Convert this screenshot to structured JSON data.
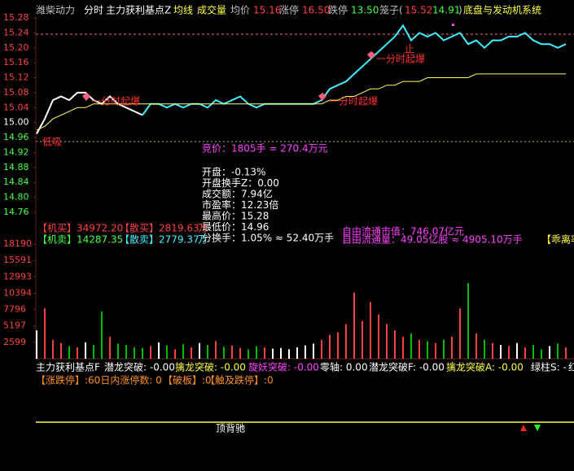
{
  "header": {
    "stock": "潍柴动力",
    "mode": "分时",
    "indicator": "主力获利基点Z",
    "ma": "均线",
    "volume": "成交量",
    "avg_label": "均价",
    "avg_value": "15.16",
    "limit_up_label": "涨停",
    "limit_up": "16.50",
    "limit_down_label": "跌停",
    "limit_down": "13.50",
    "cage_open": "笼子(",
    "cage_high": "15.52",
    "cage_low": "14.91",
    "cage_close": ")",
    "sector": "底盘与发动机系统"
  },
  "chart_data": {
    "type": "line",
    "ylim": [
      14.76,
      15.28
    ],
    "yticks": [
      15.28,
      15.24,
      {
        "value": 15.2,
        "label": "15.20"
      },
      15.16,
      15.12,
      15.08,
      15.04,
      {
        "value": 15.0,
        "label": "15.00"
      },
      14.96,
      14.92,
      14.88,
      14.84,
      {
        "value": 14.8,
        "label": "14.80"
      },
      14.76
    ],
    "series": [
      {
        "color": "#ffffff",
        "values": [
          14.97,
          15.01,
          15.06,
          15.07,
          15.06,
          15.08,
          15.08,
          15.06,
          15.05,
          15.07,
          15.05,
          15.04,
          15.03,
          15.02,
          null,
          null,
          null,
          null,
          null,
          null,
          null,
          null,
          null,
          null,
          null,
          null,
          null,
          null,
          null,
          null,
          null,
          null,
          null,
          null,
          null,
          null,
          null,
          null,
          null,
          null,
          null,
          null,
          null,
          null,
          null,
          null,
          null,
          null,
          null,
          null,
          null,
          null,
          null,
          null,
          null,
          null,
          null,
          null,
          null,
          null,
          null,
          null,
          null,
          null,
          null,
          null
        ]
      },
      {
        "color": "#40f0ff",
        "values": [
          null,
          null,
          null,
          null,
          null,
          null,
          null,
          null,
          null,
          null,
          null,
          null,
          null,
          15.02,
          15.05,
          15.05,
          15.04,
          15.05,
          15.04,
          15.05,
          15.05,
          15.04,
          15.06,
          15.05,
          15.06,
          15.07,
          15.05,
          15.04,
          15.05,
          15.05,
          15.05,
          15.05,
          15.05,
          15.05,
          15.05,
          15.06,
          15.09,
          15.1,
          15.11,
          15.13,
          15.15,
          15.17,
          15.19,
          15.21,
          15.23,
          15.26,
          15.22,
          15.24,
          15.23,
          15.24,
          15.22,
          15.23,
          15.24,
          15.21,
          15.22,
          15.2,
          15.22,
          15.22,
          15.23,
          15.23,
          15.24,
          15.22,
          15.21,
          15.21,
          15.2,
          15.21
        ]
      },
      {
        "color": "#ffff60",
        "values": [
          14.98,
          14.99,
          15.01,
          15.02,
          15.03,
          15.04,
          15.04,
          15.05,
          15.05,
          15.05,
          15.05,
          15.05,
          15.05,
          15.05,
          15.05,
          15.05,
          15.05,
          15.05,
          15.05,
          15.05,
          15.05,
          15.05,
          15.05,
          15.05,
          15.05,
          15.05,
          15.05,
          15.05,
          15.05,
          15.05,
          15.05,
          15.05,
          15.05,
          15.05,
          15.05,
          15.05,
          15.06,
          15.06,
          15.07,
          15.07,
          15.08,
          15.09,
          15.09,
          15.1,
          15.1,
          15.11,
          15.11,
          15.11,
          15.12,
          15.12,
          15.12,
          15.12,
          15.12,
          15.12,
          15.13,
          15.13,
          15.13,
          15.13,
          15.13,
          15.13,
          15.13,
          15.13,
          15.13,
          15.13,
          15.13,
          15.13
        ]
      }
    ]
  },
  "volume_chart": {
    "type": "bar",
    "ylim": [
      0,
      18190
    ],
    "yticks": [
      18190,
      15591,
      12993,
      10394,
      7796,
      5197,
      2599
    ],
    "values": [
      4500,
      8000,
      3000,
      2500,
      2000,
      1800,
      2600,
      2200,
      7500,
      3500,
      2400,
      2200,
      1800,
      1700,
      2000,
      2600,
      2100,
      1500,
      2300,
      1800,
      2500,
      2200,
      2800,
      1900,
      2100,
      1700,
      1500,
      2000,
      1800,
      1600,
      1700,
      1500,
      1800,
      2100,
      2400,
      3000,
      3800,
      4200,
      5500,
      10500,
      6000,
      9000,
      7000,
      5500,
      4500,
      3500,
      4000,
      3000,
      2800,
      2500,
      3000,
      3500,
      8000,
      12000,
      4000,
      3000,
      2500,
      2200,
      2000,
      2500,
      1800,
      2200,
      1500,
      2000,
      2400,
      1800
    ]
  },
  "annotations": {
    "signal_1": "一分时起爆",
    "signal_2": "一分时起爆",
    "signal_3": "一分时起爆",
    "stop": "止",
    "low_buy": "低吸",
    "auction": "竞价：1805手 = 270.4万元"
  },
  "info_box": [
    "开盘：-0.13%",
    "开盘换手Z：0.00",
    "成交额：7.94亿",
    "市盈率：12.23倍",
    "最高价：15.28",
    "最低价：14.96",
    "分换手：1.05% ≈ 52.40万手"
  ],
  "flows": {
    "inst_buy_label": "【机买】",
    "inst_buy": "34972.20",
    "retail_buy_label": "【散买】",
    "retail_buy": "2819.63",
    "unit_1": "万",
    "inst_sell_label": "【机卖】",
    "inst_sell": "14287.35",
    "retail_sell_label": "【散卖】",
    "retail_sell": "2779.37",
    "unit_2": "万",
    "float_cap": "自由流通市值：746.07亿元",
    "float_shares": "自由流通量：49.05亿股 ≈ 4905.10万手",
    "bias": "【乖离率"
  },
  "indicator_row": [
    "主力获利基点F",
    "潜龙突破: -0.00",
    "擒龙突破: -0.00",
    "旋妖突破: -0.00",
    "零轴: 0.00",
    "潜龙突破F: -0.00",
    "擒龙突破A: -0.00",
    "绿柱S: -",
    "红"
  ],
  "limit_row": [
    "【涨跌停】:60日内涨停数: 0",
    "【破板】:0",
    "【触及跌停】:0"
  ],
  "bottom_label": "顶背驰"
}
